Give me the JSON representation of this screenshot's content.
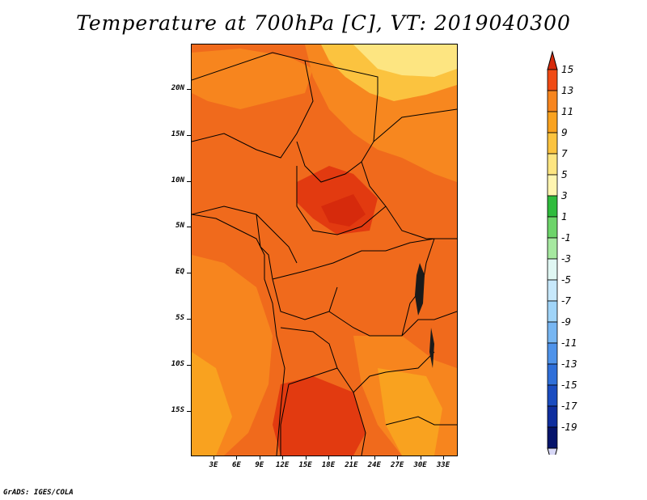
{
  "title": "Temperature at 700hPa [C], VT: 2019040300",
  "credit": "GrADS: IGES/COLA",
  "map": {
    "lat_labels": [
      "20N",
      "15N",
      "10N",
      "5N",
      "EQ",
      "5S",
      "10S",
      "15S"
    ],
    "lon_labels": [
      "3E",
      "6E",
      "9E",
      "12E",
      "15E",
      "18E",
      "21E",
      "24E",
      "27E",
      "30E",
      "33E"
    ]
  },
  "colorbar": {
    "labels": [
      "15",
      "13",
      "11",
      "9",
      "7",
      "5",
      "3",
      "1",
      "-1",
      "-3",
      "-5",
      "-7",
      "-9",
      "-11",
      "-13",
      "-15",
      "-17",
      "-19"
    ],
    "colors": [
      "#d62a0c",
      "#f04a14",
      "#f7851e",
      "#f9a21f",
      "#fbc33f",
      "#fde581",
      "#fff5b0",
      "#2fbb3d",
      "#6dd46a",
      "#a6e8a0",
      "#e0f7f3",
      "#c7e8fb",
      "#a0d4f8",
      "#77b6f2",
      "#4f93ea",
      "#2f6fd9",
      "#1a4cc0",
      "#0f2e9e",
      "#06146b",
      "#d8d8f6"
    ]
  }
}
